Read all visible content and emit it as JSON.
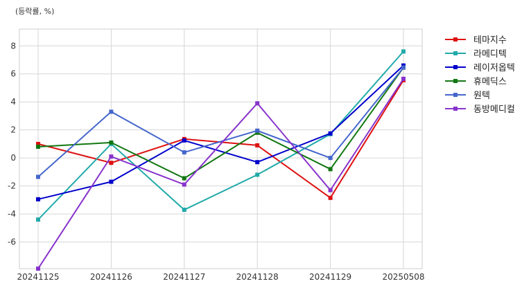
{
  "chart_data": {
    "type": "line",
    "unit_label": "(등락률, %)",
    "x": [
      "20241125",
      "20241126",
      "20241127",
      "20241128",
      "20241129",
      "20250508"
    ],
    "ylim": [
      -7.9,
      9.2
    ],
    "yticks": [
      -6,
      -4,
      -2,
      0,
      2,
      4,
      6,
      8
    ],
    "grid": true,
    "legend_position": "outside-right",
    "series": [
      {
        "name": "테마지수",
        "color": "#dd1111",
        "values": [
          1.0,
          -0.35,
          1.35,
          0.9,
          -2.85,
          5.55
        ]
      },
      {
        "name": "라메디텍",
        "color": "#22aaaa",
        "values": [
          -4.4,
          1.0,
          -3.7,
          -1.2,
          1.7,
          7.6
        ]
      },
      {
        "name": "레이저옵텍",
        "color": "#0000cc",
        "values": [
          -2.95,
          -1.7,
          1.25,
          -0.3,
          1.75,
          6.6
        ]
      },
      {
        "name": "휴메딕스",
        "color": "#117711",
        "values": [
          0.8,
          1.1,
          -1.45,
          1.8,
          -0.8,
          6.45
        ]
      },
      {
        "name": "원텍",
        "color": "#4466cc",
        "values": [
          -1.35,
          3.3,
          0.4,
          1.95,
          0.0,
          6.45
        ]
      },
      {
        "name": "동방메디컬",
        "color": "#8833cc",
        "values": [
          -7.9,
          0.1,
          -1.9,
          3.9,
          -2.3,
          5.65
        ]
      }
    ]
  }
}
